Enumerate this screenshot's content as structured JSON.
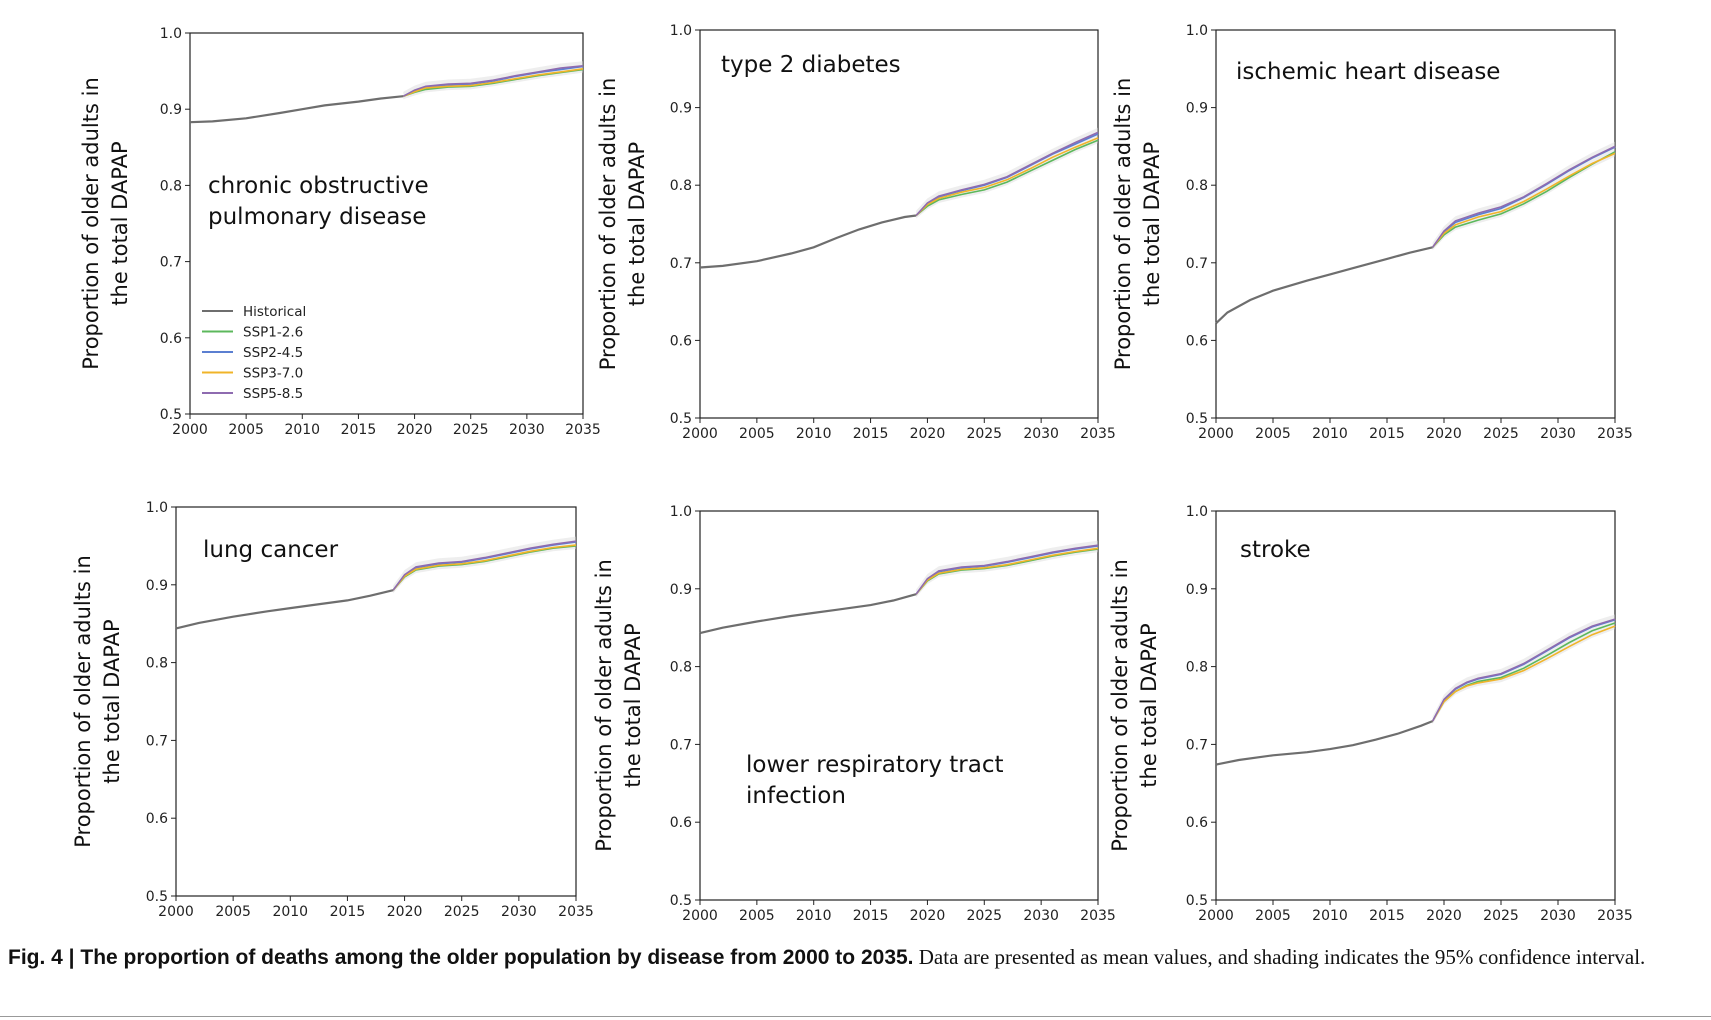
{
  "caption": {
    "label": "Fig. 4 | The proportion of deaths among the older population by disease from 2000 to 2035.",
    "text": " Data are presented as mean values, and shading indicates the 95% confidence interval."
  },
  "legend": [
    {
      "name": "Historical",
      "color": "#6e6e6e"
    },
    {
      "name": "SSP1-2.6",
      "color": "#5cb85c"
    },
    {
      "name": "SSP2-4.5",
      "color": "#5b7fd1"
    },
    {
      "name": "SSP3-7.0",
      "color": "#f0b429"
    },
    {
      "name": "SSP5-8.5",
      "color": "#8e6bb0"
    }
  ],
  "chart_data": [
    {
      "type": "line",
      "title": "chronic obstructive pulmonary disease",
      "title_lines": [
        "chronic obstructive",
        "pulmonary disease"
      ],
      "ylabel": [
        "Proportion of older adults in",
        "the total DAPAP"
      ],
      "xlim": [
        2000,
        2035
      ],
      "ylim": [
        0.5,
        1.0
      ],
      "xticks": [
        "2000",
        "2005",
        "2010",
        "2015",
        "2020",
        "2025",
        "2030",
        "2035"
      ],
      "yticks": [
        "0.5",
        "0.6",
        "0.7",
        "0.8",
        "0.9",
        "1.0"
      ],
      "legend_position": "lower-left",
      "historical": {
        "x": [
          2000,
          2002,
          2005,
          2008,
          2010,
          2012,
          2015,
          2017,
          2019
        ],
        "y": [
          0.883,
          0.884,
          0.888,
          0.895,
          0.9,
          0.905,
          0.91,
          0.914,
          0.917
        ]
      },
      "series": [
        {
          "name": "SSP1-2.6",
          "x": [
            2019,
            2020,
            2021,
            2023,
            2025,
            2027,
            2029,
            2031,
            2033,
            2035
          ],
          "y": [
            0.917,
            0.922,
            0.926,
            0.929,
            0.93,
            0.934,
            0.939,
            0.944,
            0.948,
            0.952
          ]
        },
        {
          "name": "SSP2-4.5",
          "x": [
            2019,
            2020,
            2021,
            2023,
            2025,
            2027,
            2029,
            2031,
            2033,
            2035
          ],
          "y": [
            0.917,
            0.924,
            0.929,
            0.932,
            0.933,
            0.937,
            0.943,
            0.948,
            0.952,
            0.956
          ]
        },
        {
          "name": "SSP3-7.0",
          "x": [
            2019,
            2020,
            2021,
            2023,
            2025,
            2027,
            2029,
            2031,
            2033,
            2035
          ],
          "y": [
            0.917,
            0.923,
            0.928,
            0.93,
            0.931,
            0.935,
            0.94,
            0.945,
            0.949,
            0.953
          ]
        },
        {
          "name": "SSP5-8.5",
          "x": [
            2019,
            2020,
            2021,
            2023,
            2025,
            2027,
            2029,
            2031,
            2033,
            2035
          ],
          "y": [
            0.917,
            0.925,
            0.93,
            0.933,
            0.934,
            0.938,
            0.944,
            0.949,
            0.954,
            0.957
          ]
        }
      ]
    },
    {
      "type": "line",
      "title": "type 2 diabetes",
      "title_lines": [
        "type 2 diabetes"
      ],
      "ylabel": [
        "Proportion of older adults in",
        "the total DAPAP"
      ],
      "xlim": [
        2000,
        2035
      ],
      "ylim": [
        0.5,
        1.0
      ],
      "xticks": [
        "2000",
        "2005",
        "2010",
        "2015",
        "2020",
        "2025",
        "2030",
        "2035"
      ],
      "yticks": [
        "0.5",
        "0.6",
        "0.7",
        "0.8",
        "0.9",
        "1.0"
      ],
      "historical": {
        "x": [
          2000,
          2002,
          2005,
          2008,
          2010,
          2012,
          2014,
          2016,
          2018,
          2019
        ],
        "y": [
          0.694,
          0.696,
          0.702,
          0.712,
          0.72,
          0.732,
          0.743,
          0.752,
          0.759,
          0.761
        ]
      },
      "series": [
        {
          "name": "SSP1-2.6",
          "x": [
            2019,
            2020,
            2021,
            2023,
            2025,
            2027,
            2029,
            2031,
            2033,
            2035
          ],
          "y": [
            0.761,
            0.773,
            0.781,
            0.788,
            0.794,
            0.804,
            0.818,
            0.832,
            0.846,
            0.858
          ]
        },
        {
          "name": "SSP2-4.5",
          "x": [
            2019,
            2020,
            2021,
            2023,
            2025,
            2027,
            2029,
            2031,
            2033,
            2035
          ],
          "y": [
            0.761,
            0.776,
            0.785,
            0.793,
            0.8,
            0.81,
            0.825,
            0.84,
            0.853,
            0.866
          ]
        },
        {
          "name": "SSP3-7.0",
          "x": [
            2019,
            2020,
            2021,
            2023,
            2025,
            2027,
            2029,
            2031,
            2033,
            2035
          ],
          "y": [
            0.761,
            0.775,
            0.783,
            0.791,
            0.797,
            0.807,
            0.821,
            0.836,
            0.849,
            0.861
          ]
        },
        {
          "name": "SSP5-8.5",
          "x": [
            2019,
            2020,
            2021,
            2023,
            2025,
            2027,
            2029,
            2031,
            2033,
            2035
          ],
          "y": [
            0.761,
            0.777,
            0.786,
            0.794,
            0.801,
            0.811,
            0.826,
            0.841,
            0.855,
            0.868
          ]
        }
      ]
    },
    {
      "type": "line",
      "title": "ischemic heart disease",
      "title_lines": [
        "ischemic heart disease"
      ],
      "ylabel": [
        "Proportion of older adults in",
        "the total DAPAP"
      ],
      "xlim": [
        2000,
        2035
      ],
      "ylim": [
        0.5,
        1.0
      ],
      "xticks": [
        "2000",
        "2005",
        "2010",
        "2015",
        "2020",
        "2025",
        "2030",
        "2035"
      ],
      "yticks": [
        "0.5",
        "0.6",
        "0.7",
        "0.8",
        "0.9",
        "1.0"
      ],
      "historical": {
        "x": [
          2000,
          2001,
          2003,
          2005,
          2008,
          2010,
          2012,
          2015,
          2017,
          2019
        ],
        "y": [
          0.622,
          0.636,
          0.652,
          0.664,
          0.677,
          0.685,
          0.693,
          0.705,
          0.713,
          0.72
        ]
      },
      "series": [
        {
          "name": "SSP1-2.6",
          "x": [
            2019,
            2020,
            2021,
            2023,
            2025,
            2027,
            2029,
            2031,
            2033,
            2035
          ],
          "y": [
            0.72,
            0.736,
            0.746,
            0.755,
            0.763,
            0.776,
            0.792,
            0.81,
            0.827,
            0.843
          ]
        },
        {
          "name": "SSP2-4.5",
          "x": [
            2019,
            2020,
            2021,
            2023,
            2025,
            2027,
            2029,
            2031,
            2033,
            2035
          ],
          "y": [
            0.72,
            0.74,
            0.752,
            0.762,
            0.77,
            0.784,
            0.801,
            0.819,
            0.835,
            0.849
          ]
        },
        {
          "name": "SSP3-7.0",
          "x": [
            2019,
            2020,
            2021,
            2023,
            2025,
            2027,
            2029,
            2031,
            2033,
            2035
          ],
          "y": [
            0.72,
            0.738,
            0.749,
            0.759,
            0.766,
            0.779,
            0.795,
            0.812,
            0.828,
            0.841
          ]
        },
        {
          "name": "SSP5-8.5",
          "x": [
            2019,
            2020,
            2021,
            2023,
            2025,
            2027,
            2029,
            2031,
            2033,
            2035
          ],
          "y": [
            0.72,
            0.741,
            0.754,
            0.764,
            0.772,
            0.785,
            0.802,
            0.82,
            0.836,
            0.85
          ]
        }
      ]
    },
    {
      "type": "line",
      "title": "lung cancer",
      "title_lines": [
        "lung cancer"
      ],
      "ylabel": [
        "Proportion of older adults in",
        "the total DAPAP"
      ],
      "xlim": [
        2000,
        2035
      ],
      "ylim": [
        0.5,
        1.0
      ],
      "xticks": [
        "2000",
        "2005",
        "2010",
        "2015",
        "2020",
        "2025",
        "2030",
        "2035"
      ],
      "yticks": [
        "0.5",
        "0.6",
        "0.7",
        "0.8",
        "0.9",
        "1.0"
      ],
      "historical": {
        "x": [
          2000,
          2002,
          2005,
          2008,
          2010,
          2012,
          2015,
          2017,
          2019
        ],
        "y": [
          0.844,
          0.851,
          0.859,
          0.866,
          0.87,
          0.874,
          0.88,
          0.886,
          0.893
        ]
      },
      "series": [
        {
          "name": "SSP1-2.6",
          "x": [
            2019,
            2020,
            2021,
            2023,
            2025,
            2027,
            2029,
            2031,
            2033,
            2035
          ],
          "y": [
            0.893,
            0.91,
            0.919,
            0.924,
            0.926,
            0.93,
            0.936,
            0.942,
            0.947,
            0.95
          ]
        },
        {
          "name": "SSP2-4.5",
          "x": [
            2019,
            2020,
            2021,
            2023,
            2025,
            2027,
            2029,
            2031,
            2033,
            2035
          ],
          "y": [
            0.893,
            0.912,
            0.922,
            0.927,
            0.929,
            0.934,
            0.94,
            0.946,
            0.951,
            0.955
          ]
        },
        {
          "name": "SSP3-7.0",
          "x": [
            2019,
            2020,
            2021,
            2023,
            2025,
            2027,
            2029,
            2031,
            2033,
            2035
          ],
          "y": [
            0.893,
            0.911,
            0.92,
            0.925,
            0.927,
            0.931,
            0.937,
            0.943,
            0.948,
            0.951
          ]
        },
        {
          "name": "SSP5-8.5",
          "x": [
            2019,
            2020,
            2021,
            2023,
            2025,
            2027,
            2029,
            2031,
            2033,
            2035
          ],
          "y": [
            0.893,
            0.913,
            0.923,
            0.928,
            0.93,
            0.935,
            0.941,
            0.947,
            0.952,
            0.956
          ]
        }
      ]
    },
    {
      "type": "line",
      "title": "lower respiratory tract infection",
      "title_lines": [
        "lower respiratory tract",
        "infection"
      ],
      "ylabel": [
        "Proportion of older adults in",
        "the total DAPAP"
      ],
      "xlim": [
        2000,
        2035
      ],
      "ylim": [
        0.5,
        1.0
      ],
      "xticks": [
        "2000",
        "2005",
        "2010",
        "2015",
        "2020",
        "2025",
        "2030",
        "2035"
      ],
      "yticks": [
        "0.5",
        "0.6",
        "0.7",
        "0.8",
        "0.9",
        "1.0"
      ],
      "historical": {
        "x": [
          2000,
          2002,
          2005,
          2008,
          2010,
          2012,
          2015,
          2017,
          2019
        ],
        "y": [
          0.843,
          0.85,
          0.858,
          0.865,
          0.869,
          0.873,
          0.879,
          0.885,
          0.893
        ]
      },
      "series": [
        {
          "name": "SSP1-2.6",
          "x": [
            2019,
            2020,
            2021,
            2023,
            2025,
            2027,
            2029,
            2031,
            2033,
            2035
          ],
          "y": [
            0.893,
            0.91,
            0.919,
            0.924,
            0.926,
            0.93,
            0.936,
            0.942,
            0.947,
            0.951
          ]
        },
        {
          "name": "SSP2-4.5",
          "x": [
            2019,
            2020,
            2021,
            2023,
            2025,
            2027,
            2029,
            2031,
            2033,
            2035
          ],
          "y": [
            0.893,
            0.912,
            0.922,
            0.927,
            0.929,
            0.934,
            0.94,
            0.946,
            0.951,
            0.955
          ]
        },
        {
          "name": "SSP3-7.0",
          "x": [
            2019,
            2020,
            2021,
            2023,
            2025,
            2027,
            2029,
            2031,
            2033,
            2035
          ],
          "y": [
            0.893,
            0.911,
            0.92,
            0.925,
            0.927,
            0.931,
            0.937,
            0.943,
            0.948,
            0.952
          ]
        },
        {
          "name": "SSP5-8.5",
          "x": [
            2019,
            2020,
            2021,
            2023,
            2025,
            2027,
            2029,
            2031,
            2033,
            2035
          ],
          "y": [
            0.893,
            0.913,
            0.923,
            0.928,
            0.93,
            0.935,
            0.941,
            0.947,
            0.952,
            0.956
          ]
        }
      ]
    },
    {
      "type": "line",
      "title": "stroke",
      "title_lines": [
        "stroke"
      ],
      "ylabel": [
        "Proportion of older adults in",
        "the total DAPAP"
      ],
      "xlim": [
        2000,
        2035
      ],
      "ylim": [
        0.5,
        1.0
      ],
      "xticks": [
        "2000",
        "2005",
        "2010",
        "2015",
        "2020",
        "2025",
        "2030",
        "2035"
      ],
      "yticks": [
        "0.5",
        "0.6",
        "0.7",
        "0.8",
        "0.9",
        "1.0"
      ],
      "historical": {
        "x": [
          2000,
          2002,
          2005,
          2008,
          2010,
          2012,
          2014,
          2016,
          2018,
          2019
        ],
        "y": [
          0.674,
          0.68,
          0.686,
          0.69,
          0.694,
          0.699,
          0.706,
          0.714,
          0.724,
          0.73
        ]
      },
      "series": [
        {
          "name": "SSP1-2.6",
          "x": [
            2019,
            2020,
            2021,
            2022,
            2023,
            2025,
            2027,
            2029,
            2031,
            2033,
            2035
          ],
          "y": [
            0.73,
            0.755,
            0.768,
            0.776,
            0.781,
            0.786,
            0.798,
            0.814,
            0.831,
            0.846,
            0.856
          ]
        },
        {
          "name": "SSP2-4.5",
          "x": [
            2019,
            2020,
            2021,
            2022,
            2023,
            2025,
            2027,
            2029,
            2031,
            2033,
            2035
          ],
          "y": [
            0.73,
            0.757,
            0.771,
            0.779,
            0.784,
            0.79,
            0.803,
            0.82,
            0.837,
            0.851,
            0.86
          ]
        },
        {
          "name": "SSP3-7.0",
          "x": [
            2019,
            2020,
            2021,
            2022,
            2023,
            2025,
            2027,
            2029,
            2031,
            2033,
            2035
          ],
          "y": [
            0.73,
            0.755,
            0.768,
            0.775,
            0.779,
            0.784,
            0.795,
            0.81,
            0.826,
            0.841,
            0.852
          ]
        },
        {
          "name": "SSP5-8.5",
          "x": [
            2019,
            2020,
            2021,
            2022,
            2023,
            2025,
            2027,
            2029,
            2031,
            2033,
            2035
          ],
          "y": [
            0.73,
            0.758,
            0.772,
            0.78,
            0.785,
            0.791,
            0.804,
            0.821,
            0.838,
            0.852,
            0.861
          ]
        }
      ]
    }
  ]
}
